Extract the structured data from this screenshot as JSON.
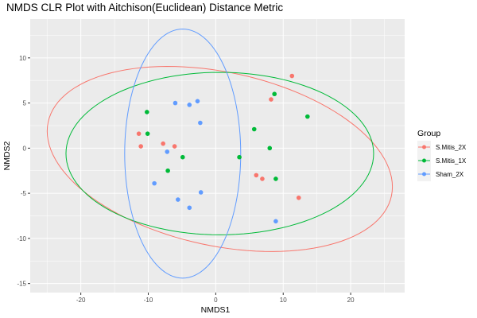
{
  "chart_data": {
    "type": "scatter",
    "title": "NMDS CLR Plot with Aitchison(Euclidean) Distance Metric",
    "xlabel": "NMDS1",
    "ylabel": "NMDS2",
    "xlim": [
      -27.5,
      28.0
    ],
    "ylim": [
      -16.0,
      14.3
    ],
    "x_ticks": [
      -20,
      -10,
      0,
      10,
      20
    ],
    "y_ticks": [
      -15,
      -10,
      -5,
      0,
      5,
      10
    ],
    "grid": true,
    "legend": {
      "title": "Group",
      "position": "right"
    },
    "colors": {
      "S.Mitis_2X": "#F8766D",
      "S.Mitis_1X": "#00BA38",
      "Sham_2X": "#619CFF"
    },
    "series": [
      {
        "name": "S.Mitis_2X",
        "points": [
          [
            11.3,
            8.0
          ],
          [
            8.2,
            5.4
          ],
          [
            -11.4,
            1.6
          ],
          [
            -11.1,
            0.2
          ],
          [
            -7.8,
            0.5
          ],
          [
            -6.1,
            0.2
          ],
          [
            6.0,
            -3.0
          ],
          [
            6.9,
            -3.4
          ],
          [
            12.3,
            -5.5
          ]
        ],
        "ellipse": {
          "center": [
            0.6,
            -1.2
          ],
          "semi_axes": [
            25.8,
            9.7
          ],
          "angle_deg": -8
        }
      },
      {
        "name": "S.Mitis_1X",
        "points": [
          [
            8.7,
            6.0
          ],
          [
            13.6,
            3.5
          ],
          [
            -10.2,
            4.0
          ],
          [
            -10.1,
            1.6
          ],
          [
            5.7,
            2.1
          ],
          [
            8.0,
            0.0
          ],
          [
            3.5,
            -1.0
          ],
          [
            -4.9,
            -1.0
          ],
          [
            -7.1,
            -2.5
          ],
          [
            8.9,
            -3.4
          ]
        ],
        "ellipse": {
          "center": [
            0.6,
            -0.6
          ],
          "semi_axes": [
            22.8,
            9.0
          ],
          "angle_deg": 0
        }
      },
      {
        "name": "Sham_2X",
        "points": [
          [
            -6.0,
            5.0
          ],
          [
            -2.7,
            5.2
          ],
          [
            -3.9,
            4.8
          ],
          [
            -2.3,
            2.8
          ],
          [
            -7.2,
            -0.4
          ],
          [
            -9.1,
            -3.9
          ],
          [
            -2.2,
            -4.9
          ],
          [
            -5.6,
            -5.7
          ],
          [
            -3.9,
            -6.6
          ],
          [
            8.9,
            -8.1
          ]
        ],
        "ellipse": {
          "center": [
            -4.9,
            -0.6
          ],
          "semi_axes": [
            8.6,
            13.8
          ],
          "angle_deg": 0
        }
      }
    ]
  }
}
